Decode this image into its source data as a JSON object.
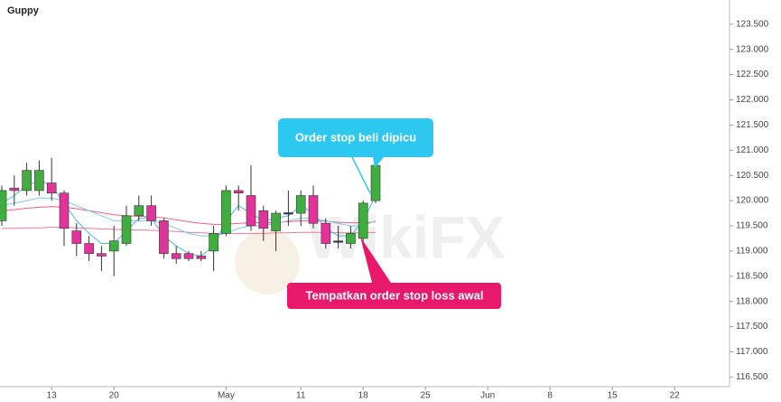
{
  "chart_data": {
    "type": "candlestick",
    "title": "Guppy",
    "categories": [
      null,
      null,
      null,
      null,
      "13",
      null,
      null,
      null,
      null,
      "20",
      null,
      null,
      null,
      null,
      null,
      null,
      null,
      null,
      "May",
      null,
      null,
      null,
      null,
      null,
      "11",
      null,
      null,
      null,
      null,
      "18",
      null,
      null,
      null,
      null,
      "25",
      null,
      null,
      null,
      null,
      "Jun",
      null,
      null,
      null,
      null,
      "8",
      null,
      null,
      null,
      null,
      "15",
      null,
      null,
      null,
      null,
      "22",
      null,
      null,
      null,
      null
    ],
    "open": [
      119.6,
      120.25,
      120.2,
      120.2,
      120.35,
      120.15,
      119.4,
      119.15,
      118.95,
      119.0,
      119.15,
      119.7,
      119.9,
      119.6,
      118.95,
      118.95,
      118.9,
      119.0,
      119.35,
      120.2,
      120.1,
      119.8,
      119.4,
      119.76,
      119.75,
      120.1,
      119.55,
      119.2,
      119.15,
      119.25,
      120.0,
      null,
      null,
      null,
      null,
      null,
      null,
      null,
      null,
      null,
      null,
      null,
      null,
      null,
      null,
      null,
      null,
      null,
      null,
      null,
      null,
      null,
      null,
      null,
      null,
      null,
      null,
      null,
      null
    ],
    "high": [
      120.3,
      120.5,
      120.75,
      120.8,
      120.85,
      120.2,
      119.55,
      119.3,
      119.1,
      119.5,
      119.9,
      120.1,
      120.1,
      119.65,
      119.1,
      119.0,
      119.0,
      119.5,
      120.3,
      120.3,
      120.7,
      119.9,
      119.8,
      120.2,
      120.2,
      120.3,
      119.65,
      119.5,
      119.5,
      120.0,
      120.75,
      null,
      null,
      null,
      null,
      null,
      null,
      null,
      null,
      null,
      null,
      null,
      null,
      null,
      null,
      null,
      null,
      null,
      null,
      null,
      null,
      null,
      null,
      null,
      null,
      null,
      null,
      null,
      null
    ],
    "low": [
      119.5,
      119.9,
      120.1,
      120.1,
      120.0,
      119.1,
      118.9,
      118.8,
      118.6,
      118.5,
      119.1,
      119.6,
      119.5,
      118.85,
      118.75,
      118.8,
      118.8,
      118.6,
      119.3,
      119.8,
      119.4,
      119.2,
      119.0,
      119.5,
      119.5,
      119.45,
      119.05,
      119.05,
      119.05,
      119.15,
      119.95,
      null,
      null,
      null,
      null,
      null,
      null,
      null,
      null,
      null,
      null,
      null,
      null,
      null,
      null,
      null,
      null,
      null,
      null,
      null,
      null,
      null,
      null,
      null,
      null,
      null,
      null,
      null,
      null
    ],
    "close": [
      120.2,
      120.2,
      120.6,
      120.6,
      120.15,
      119.45,
      119.15,
      118.95,
      118.9,
      119.2,
      119.7,
      119.9,
      119.6,
      118.95,
      118.85,
      118.85,
      118.85,
      119.35,
      120.2,
      120.15,
      119.5,
      119.45,
      119.75,
      119.76,
      120.1,
      119.55,
      119.15,
      119.2,
      119.35,
      119.95,
      120.7,
      null,
      null,
      null,
      null,
      null,
      null,
      null,
      null,
      null,
      null,
      null,
      null,
      null,
      null,
      null,
      null,
      null,
      null,
      null,
      null,
      null,
      null,
      null,
      null,
      null,
      null,
      null,
      null
    ],
    "up_color": "#3fae3f",
    "down_color": "#e2339b",
    "doji_color": "#333333",
    "series": [
      {
        "color": "#f07a9a",
        "values": [
          119.45,
          119.45,
          119.46,
          119.46,
          119.47,
          119.47,
          119.46,
          119.45,
          119.44,
          119.43,
          119.42,
          119.42,
          119.41,
          119.4,
          119.39,
          119.37,
          119.36,
          119.35,
          119.35,
          119.35,
          119.35,
          119.35,
          119.36,
          119.36,
          119.37,
          119.37,
          119.37,
          119.36,
          119.36,
          119.36,
          119.37,
          null,
          null,
          null,
          null,
          null,
          null,
          null,
          null,
          null,
          null,
          null,
          null,
          null,
          null,
          null,
          null,
          null,
          null,
          null,
          null,
          null,
          null,
          null,
          null,
          null,
          null,
          null,
          null
        ]
      },
      {
        "color": "#ef5e84",
        "values": [
          119.8,
          119.82,
          119.85,
          119.87,
          119.88,
          119.87,
          119.84,
          119.8,
          119.76,
          119.72,
          119.7,
          119.69,
          119.68,
          119.66,
          119.62,
          119.58,
          119.55,
          119.53,
          119.53,
          119.55,
          119.56,
          119.56,
          119.57,
          119.58,
          119.6,
          119.6,
          119.59,
          119.57,
          119.56,
          119.56,
          119.58,
          null,
          null,
          null,
          null,
          null,
          null,
          null,
          null,
          null,
          null,
          null,
          null,
          null,
          null,
          null,
          null,
          null,
          null,
          null,
          null,
          null,
          null,
          null,
          null,
          null,
          null,
          null,
          null
        ]
      },
      {
        "color": "#7fc8ea",
        "values": [
          119.9,
          119.95,
          120.0,
          120.05,
          120.05,
          120.0,
          119.9,
          119.8,
          119.7,
          119.6,
          119.6,
          119.6,
          119.6,
          119.55,
          119.45,
          119.35,
          119.3,
          119.3,
          119.35,
          119.45,
          119.5,
          119.5,
          119.55,
          119.6,
          119.65,
          119.65,
          119.6,
          119.55,
          119.5,
          119.5,
          119.6,
          null,
          null,
          null,
          null,
          null,
          null,
          null,
          null,
          null,
          null,
          null,
          null,
          null,
          null,
          null,
          null,
          null,
          null,
          null,
          null,
          null,
          null,
          null,
          null,
          null,
          null,
          null,
          null
        ]
      },
      {
        "color": "#4fb6e6",
        "values": [
          119.95,
          120.1,
          120.3,
          120.4,
          120.3,
          119.95,
          119.6,
          119.35,
          119.15,
          119.15,
          119.4,
          119.65,
          119.65,
          119.3,
          119.1,
          118.95,
          118.9,
          119.1,
          119.6,
          119.9,
          119.75,
          119.6,
          119.65,
          119.7,
          119.9,
          119.75,
          119.45,
          119.3,
          119.3,
          119.6,
          120.1,
          null,
          null,
          null,
          null,
          null,
          null,
          null,
          null,
          null,
          null,
          null,
          null,
          null,
          null,
          null,
          null,
          null,
          null,
          null,
          null,
          null,
          null,
          null,
          null,
          null,
          null,
          null,
          null
        ]
      }
    ],
    "ylim": [
      116.31,
      123.98
    ],
    "yticks": [
      {
        "value": 116.5,
        "label": "116.500"
      },
      {
        "value": 117,
        "label": "117.000"
      },
      {
        "value": 117.5,
        "label": "117.500"
      },
      {
        "value": 118,
        "label": "118.000"
      },
      {
        "value": 118.5,
        "label": "118.500"
      },
      {
        "value": 119,
        "label": "119.000"
      },
      {
        "value": 119.5,
        "label": "119.500"
      },
      {
        "value": 120,
        "label": "120.000"
      },
      {
        "value": 120.5,
        "label": "120.500"
      },
      {
        "value": 121,
        "label": "121.000"
      },
      {
        "value": 121.5,
        "label": "121.500"
      },
      {
        "value": 122,
        "label": "122.000"
      },
      {
        "value": 122.5,
        "label": "122.500"
      },
      {
        "value": 123,
        "label": "123.000"
      },
      {
        "value": 123.5,
        "label": "123.500"
      }
    ],
    "annotations": [
      {
        "text": "Order stop beli dipicu",
        "color": "#2ec7f0"
      },
      {
        "text": "Tempatkan order stop loss awal",
        "color": "#e8196b"
      }
    ],
    "watermark": "WikiFX"
  }
}
